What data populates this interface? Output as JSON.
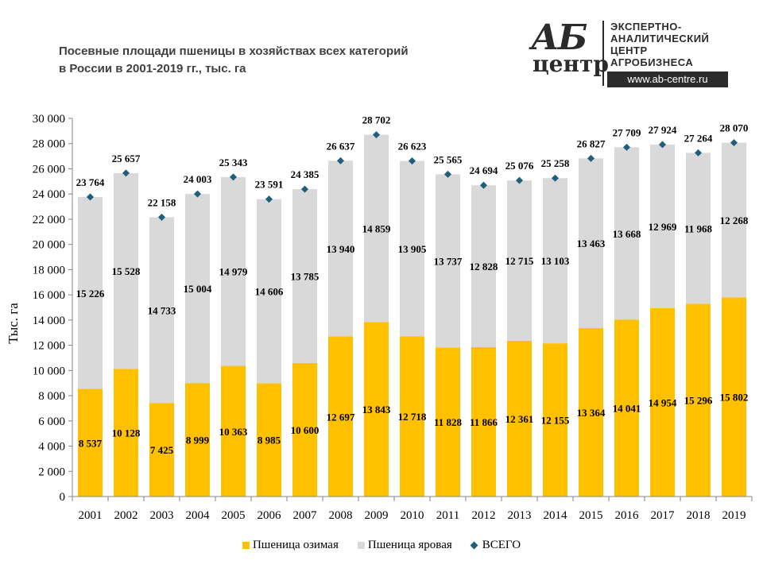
{
  "title": {
    "line1": "Посевные площади пшеницы в хозяйствах всех категорий",
    "line2": "в России в 2001-2019 гг., тыс. га"
  },
  "logo": {
    "ab": "АБ",
    "centr": "центр",
    "text_lines": [
      "ЭКСПЕРТНО-",
      "АНАЛИТИЧЕСКИЙ",
      "ЦЕНТР",
      "АГРОБИЗНЕСА"
    ],
    "url": "www.ab-centre.ru"
  },
  "colors": {
    "winter": "#ffc000",
    "spring": "#d9d9d9",
    "total": "#1f5f7a"
  },
  "chart_data": {
    "type": "bar",
    "stacked": true,
    "categories": [
      "2001",
      "2002",
      "2003",
      "2004",
      "2005",
      "2006",
      "2007",
      "2008",
      "2009",
      "2010",
      "2011",
      "2012",
      "2013",
      "2014",
      "2015",
      "2016",
      "2017",
      "2018",
      "2019"
    ],
    "series": [
      {
        "name": "Пшеница озимая",
        "values": [
          8537,
          10128,
          7425,
          8999,
          10363,
          8985,
          10600,
          12697,
          13843,
          12718,
          11828,
          11866,
          12361,
          12155,
          13364,
          14041,
          14954,
          15296,
          15802
        ]
      },
      {
        "name": "Пшеница яровая",
        "values": [
          15226,
          15528,
          14733,
          15004,
          14979,
          14606,
          13785,
          13940,
          14859,
          13905,
          13737,
          12828,
          12715,
          13103,
          13463,
          13668,
          12969,
          11968,
          12268
        ]
      },
      {
        "name": "ВСЕГО",
        "type": "scatter",
        "values": [
          23764,
          25657,
          22158,
          24003,
          25343,
          23591,
          24385,
          26637,
          28702,
          26623,
          25565,
          24694,
          25076,
          25258,
          26827,
          27709,
          27924,
          27264,
          28070
        ]
      }
    ],
    "ylabel": "Тыс. га",
    "ylim": [
      0,
      30000
    ],
    "ytick_step": 2000,
    "grid": false,
    "legend": "bottom"
  }
}
